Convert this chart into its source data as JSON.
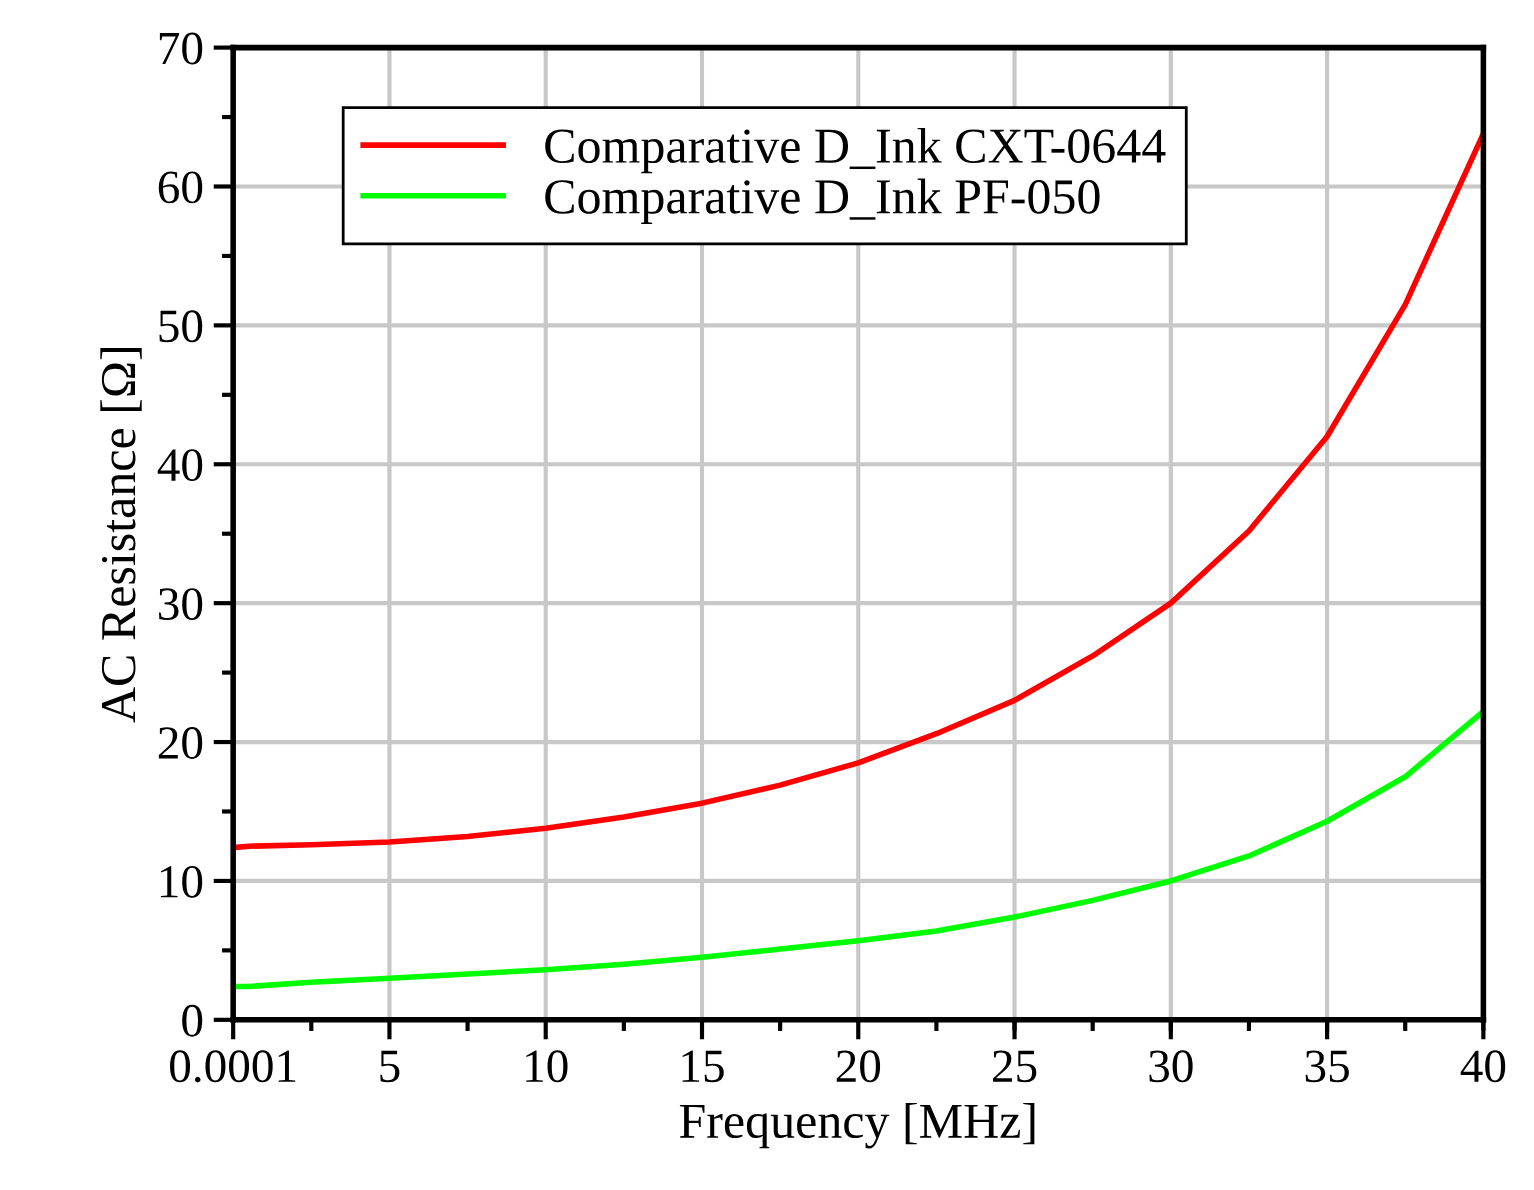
{
  "chart_data": {
    "type": "line",
    "xlabel": "Frequency [MHz]",
    "ylabel": "AC Resistance [Ω]",
    "xlim": [
      0.0001,
      40
    ],
    "xticks": [
      0.0001,
      5,
      10,
      15,
      20,
      25,
      30,
      35,
      40
    ],
    "ylim": [
      0,
      70
    ],
    "yticks": [
      0,
      10,
      20,
      30,
      40,
      50,
      60,
      70
    ],
    "grid": true,
    "legend": "top left",
    "line_style": "solid",
    "marker": "none",
    "series": [
      {
        "name": "Comparative D_Ink CXT-0644",
        "color": "#ff0000",
        "x": [
          0.0001,
          0.5,
          2.5,
          5,
          7.5,
          10,
          12.5,
          15,
          17.5,
          20,
          22.5,
          25,
          27.5,
          30,
          32.5,
          35,
          37.5,
          40
        ],
        "values": [
          12.4,
          12.5,
          12.6,
          12.8,
          13.2,
          13.8,
          14.6,
          15.6,
          16.9,
          18.5,
          20.6,
          23,
          26.2,
          30,
          35.2,
          42,
          51.5,
          63.8
        ]
      },
      {
        "name": "Comparative D_Ink PF-050",
        "color": "#00ff00",
        "x": [
          0.0001,
          0.5,
          2.5,
          5,
          7.5,
          10,
          12.5,
          15,
          17.5,
          20,
          22.5,
          25,
          27.5,
          30,
          32.5,
          35,
          37.5,
          40
        ],
        "values": [
          2.4,
          2.4,
          2.7,
          3,
          3.3,
          3.6,
          4.0,
          4.5,
          5.1,
          5.7,
          6.4,
          7.4,
          8.6,
          10,
          11.8,
          14.3,
          17.5,
          22.2
        ]
      }
    ]
  }
}
